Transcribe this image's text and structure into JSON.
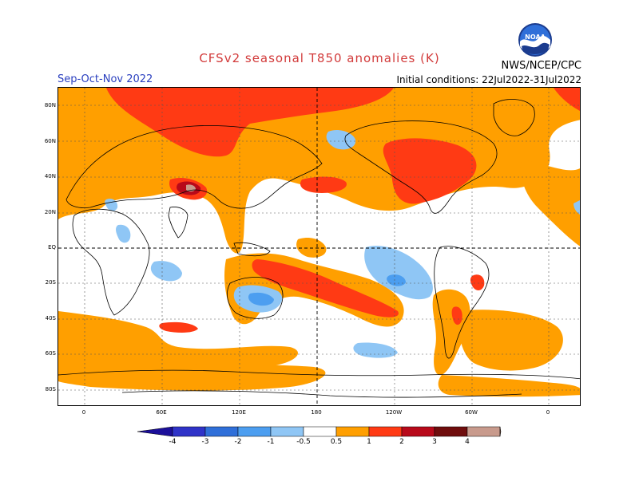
{
  "header": {
    "title": "CFSv2 seasonal T850 anomalies (K)",
    "season": "Sep-Oct-Nov 2022",
    "agency": "NWS/NCEP/CPC",
    "initial_conditions": "Initial conditions: 22Jul2022-31Jul2022",
    "logo_text": "NOAA"
  },
  "map": {
    "lat_labels": [
      "80N",
      "60N",
      "40N",
      "20N",
      "EQ",
      "20S",
      "40S",
      "60S",
      "80S"
    ],
    "lon_labels": [
      "0",
      "60E",
      "120E",
      "180",
      "120W",
      "60W",
      "0"
    ]
  },
  "colorbar": {
    "labels": [
      "-4",
      "-3",
      "-2",
      "-1",
      "-0.5",
      "0.5",
      "1",
      "2",
      "3",
      "4"
    ],
    "colors": [
      "#1c0f9a",
      "#2f33c8",
      "#2f6fd9",
      "#4c9ef0",
      "#8fc6f5",
      "#ffffff",
      "#ff9f00",
      "#ff3a14",
      "#b8091a",
      "#6f0d0d",
      "#c89a8c",
      "#7a4a3a"
    ]
  }
}
